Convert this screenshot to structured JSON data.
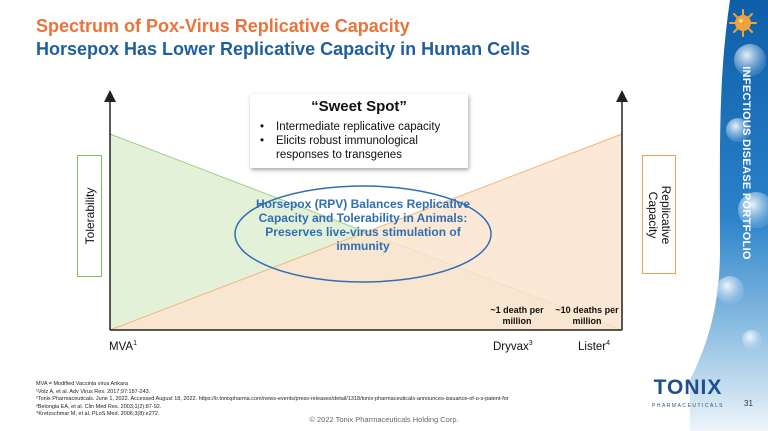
{
  "title": "Spectrum of Pox-Virus Replicative Capacity",
  "subtitle": "Horsepox Has Lower Replicative Capacity in Human Cells",
  "side_label": "INFECTIOUS DISEASE PORTFOLIO",
  "sweet_spot": {
    "title": "“Sweet Spot”",
    "bullets": [
      "Intermediate replicative capacity",
      "Elicits robust immunological responses to transgenes"
    ]
  },
  "y_left_label": "Tolerability",
  "y_right_label": "Replicative Capacity",
  "ellipse_text": "Horsepox (RPV) Balances Replicative Capacity and Tolerability in Animals: Preserves live-virus stimulation of immunity",
  "death_labels": [
    "~1 death per million",
    "~10 deaths per million"
  ],
  "x_labels": [
    {
      "name": "MVA",
      "sup": "1"
    },
    {
      "name": "Dryvax",
      "sup": "3"
    },
    {
      "name": "Lister",
      "sup": "4"
    }
  ],
  "footnotes": [
    "MVA = Modified Vaccinia virus Ankara",
    "¹Volz A, et al. Adv Virus Res. 2017;97:187-243.",
    "²Tonix Pharmaceuticals. June 1, 2022. Accessed August 18, 2022. https://ir.tonixpharma.com/news-events/press-releases/detail/1318/tonix-pharmaceuticals-announces-issuance-of-u-s-patent-for",
    "³Belongia EA, et al. Clin Med Res. 2003;1(2):87-92.",
    "⁴Kretzschmar M, et al. PLoS Med. 2006;3(8):e272."
  ],
  "copyright": "© 2022 Tonix Pharmaceuticals Holding Corp.",
  "page_number": "31",
  "logo": {
    "word": "TONIX",
    "sub": "PHARMACEUTICALS"
  },
  "colors": {
    "orange": "#e8743b",
    "blue": "#1f5f9e",
    "green": "#7cc05e",
    "orange_light": "#f0a056",
    "ellipse": "#2f6fb3"
  }
}
